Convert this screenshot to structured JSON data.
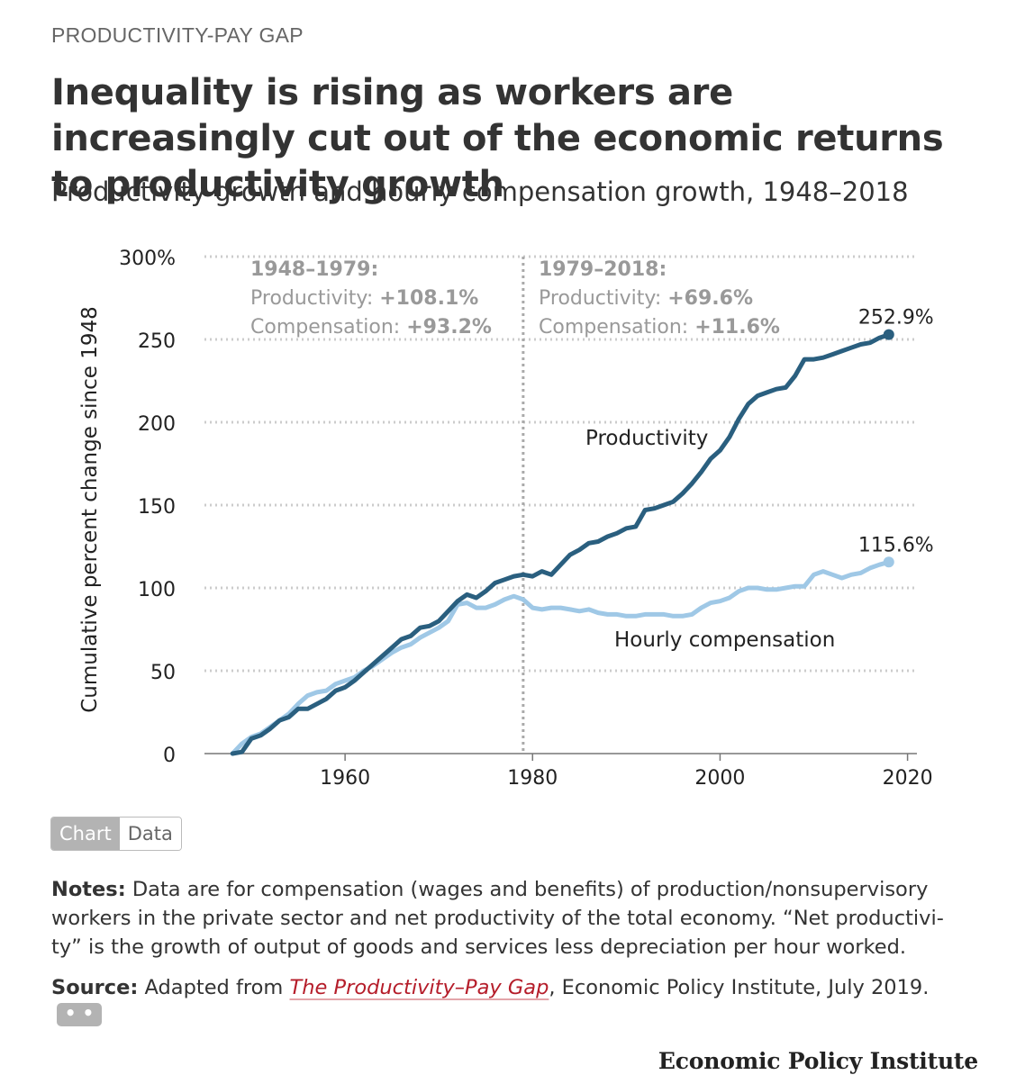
{
  "header": {
    "kicker": "PRODUCTIVITY-PAY GAP",
    "title": "Inequality is rising as workers are increasingly cut out of the economic returns to productivity growth",
    "subtitle": "Productivity growth and hourly compensation growth, 1948–2018"
  },
  "chart_data": {
    "type": "line",
    "ylabel": "Cumulative percent change since 1948",
    "xlabel": "",
    "xlim": [
      1945,
      2021
    ],
    "ylim": [
      0,
      300
    ],
    "x_ticks": [
      1960,
      1980,
      2000,
      2020
    ],
    "y_ticks": [
      0,
      50,
      100,
      150,
      200,
      250,
      300
    ],
    "y_tick_labels": [
      "0",
      "50",
      "100",
      "150",
      "200",
      "250",
      "300%"
    ],
    "grid": "horizontal dotted",
    "colors": {
      "productivity": "#2a5f7f",
      "compensation": "#9fc8e6",
      "grid": "#cccccc",
      "divider": "#aaaaaa",
      "period_text": "#999999"
    },
    "divider_x": 1979,
    "periods": [
      {
        "heading": "1948–1979:",
        "line1_label": "Productivity: ",
        "line1_value": "+108.1%",
        "line2_label": "Compensation: ",
        "line2_value": "+93.2%"
      },
      {
        "heading": "1979–2018:",
        "line1_label": "Productivity: ",
        "line1_value": "+69.6%",
        "line2_label": "Compensation: ",
        "line2_value": "+11.6%"
      }
    ],
    "series": [
      {
        "name": "Productivity",
        "end_label": "252.9%",
        "x": [
          1948,
          1949,
          1950,
          1951,
          1952,
          1953,
          1954,
          1955,
          1956,
          1957,
          1958,
          1959,
          1960,
          1961,
          1962,
          1963,
          1964,
          1965,
          1966,
          1967,
          1968,
          1969,
          1970,
          1971,
          1972,
          1973,
          1974,
          1975,
          1976,
          1977,
          1978,
          1979,
          1980,
          1981,
          1982,
          1983,
          1984,
          1985,
          1986,
          1987,
          1988,
          1989,
          1990,
          1991,
          1992,
          1993,
          1994,
          1995,
          1996,
          1997,
          1998,
          1999,
          2000,
          2001,
          2002,
          2003,
          2004,
          2005,
          2006,
          2007,
          2008,
          2009,
          2010,
          2011,
          2012,
          2013,
          2014,
          2015,
          2016,
          2017,
          2018
        ],
        "y": [
          0,
          1,
          9,
          11,
          15,
          20,
          22,
          27,
          27,
          30,
          33,
          38,
          40,
          44,
          49,
          54,
          59,
          64,
          69,
          71,
          76,
          77,
          80,
          86,
          92,
          96,
          94,
          98,
          103,
          105,
          107,
          108,
          107,
          110,
          108,
          114,
          120,
          123,
          127,
          128,
          131,
          133,
          136,
          137,
          147,
          148,
          150,
          152,
          157,
          163,
          170,
          178,
          183,
          191,
          202,
          211,
          216,
          218,
          220,
          221,
          228,
          238,
          238,
          239,
          241,
          243,
          245,
          247,
          248,
          251,
          252.9
        ]
      },
      {
        "name": "Hourly compensation",
        "end_label": "115.6%",
        "x": [
          1948,
          1949,
          1950,
          1951,
          1952,
          1953,
          1954,
          1955,
          1956,
          1957,
          1958,
          1959,
          1960,
          1961,
          1962,
          1963,
          1964,
          1965,
          1966,
          1967,
          1968,
          1969,
          1970,
          1971,
          1972,
          1973,
          1974,
          1975,
          1976,
          1977,
          1978,
          1979,
          1980,
          1981,
          1982,
          1983,
          1984,
          1985,
          1986,
          1987,
          1988,
          1989,
          1990,
          1991,
          1992,
          1993,
          1994,
          1995,
          1996,
          1997,
          1998,
          1999,
          2000,
          2001,
          2002,
          2003,
          2004,
          2005,
          2006,
          2007,
          2008,
          2009,
          2010,
          2011,
          2012,
          2013,
          2014,
          2015,
          2016,
          2017,
          2018
        ],
        "y": [
          0,
          6,
          10,
          12,
          16,
          20,
          24,
          30,
          35,
          37,
          38,
          42,
          44,
          46,
          50,
          53,
          57,
          61,
          64,
          66,
          70,
          73,
          76,
          80,
          90,
          91,
          88,
          88,
          90,
          93,
          95,
          93,
          88,
          87,
          88,
          88,
          87,
          86,
          87,
          85,
          84,
          84,
          83,
          83,
          84,
          84,
          84,
          83,
          83,
          84,
          88,
          91,
          92,
          94,
          98,
          100,
          100,
          99,
          99,
          100,
          101,
          101,
          108,
          110,
          108,
          106,
          108,
          109,
          112,
          114,
          115.6
        ]
      }
    ],
    "annotations": [
      "Productivity",
      "Hourly compensation"
    ]
  },
  "toggle": {
    "chart_label": "Chart",
    "data_label": "Data"
  },
  "notes": {
    "label": "Notes:",
    "text": " Data are for compensation (wages and benefits) of production/nonsupervisory workers in the private sector and net productivity of the total economy. “Net productivi-ty” is the growth of output of goods and services less depreciation per hour worked."
  },
  "source": {
    "label": "Source:",
    "prefix": " Adapted from ",
    "link_text": "The Productivity–Pay Gap",
    "suffix": ", Economic Policy Institute, July 2019.",
    "more_label": "• • •"
  },
  "brand": "Economic Policy Institute"
}
